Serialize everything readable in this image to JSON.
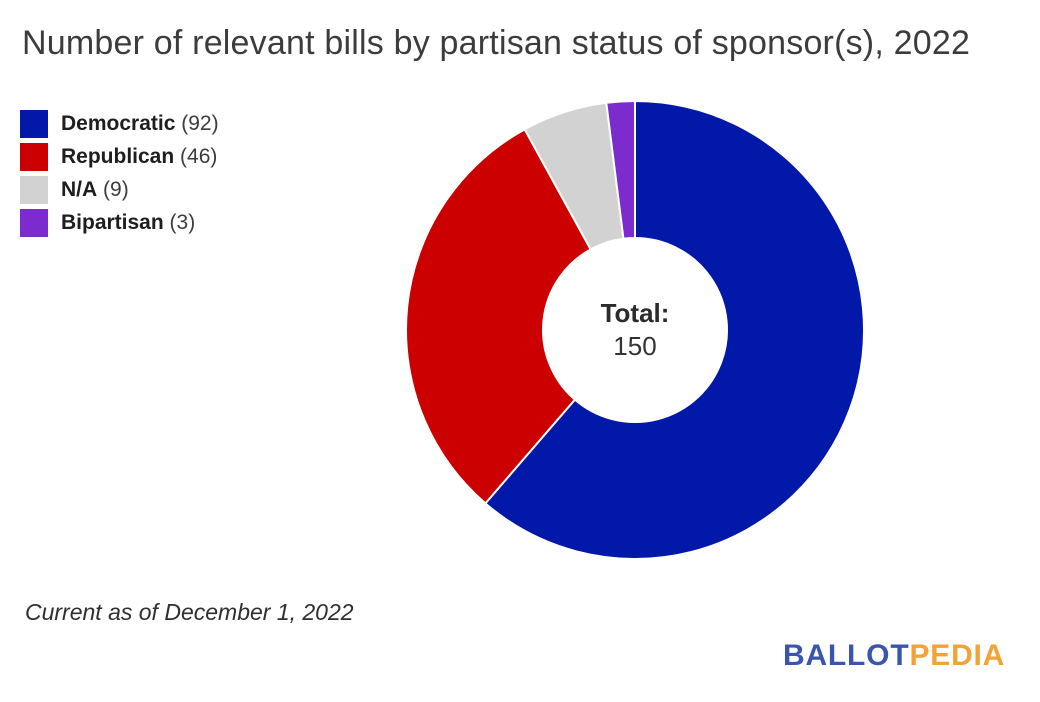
{
  "title": "Number of relevant bills by partisan status of sponsor(s), 2022",
  "legend": {
    "items": [
      {
        "label": "Democratic",
        "count": "(92)",
        "color": "#0118a8"
      },
      {
        "label": "Republican",
        "count": "(46)",
        "color": "#cc0000"
      },
      {
        "label": "N/A",
        "count": "(9)",
        "color": "#d2d2d2"
      },
      {
        "label": "Bipartisan",
        "count": "(3)",
        "color": "#7b2bce"
      }
    ]
  },
  "center": {
    "label": "Total:",
    "value": "150"
  },
  "footnote": "Current as of December 1, 2022",
  "logo": {
    "part1": "BALLOT",
    "part2": "PEDIA",
    "part1_color": "#3a55b0",
    "part2_color": "#f2a237"
  },
  "chart_data": {
    "type": "pie",
    "subtype": "donut",
    "title": "Number of relevant bills by partisan status of sponsor(s), 2022",
    "categories": [
      "Democratic",
      "Republican",
      "N/A",
      "Bipartisan"
    ],
    "values": [
      92,
      46,
      9,
      3
    ],
    "colors": [
      "#0118a8",
      "#cc0000",
      "#d2d2d2",
      "#7b2bce"
    ],
    "total": 150,
    "center_label": "Total:",
    "center_value": "150",
    "legend_position": "top-left",
    "start_angle_deg": 0,
    "direction": "clockwise",
    "inner_radius_ratio": 0.4,
    "slice_border_color": "#ffffff",
    "annotation": "Current as of December 1, 2022"
  }
}
